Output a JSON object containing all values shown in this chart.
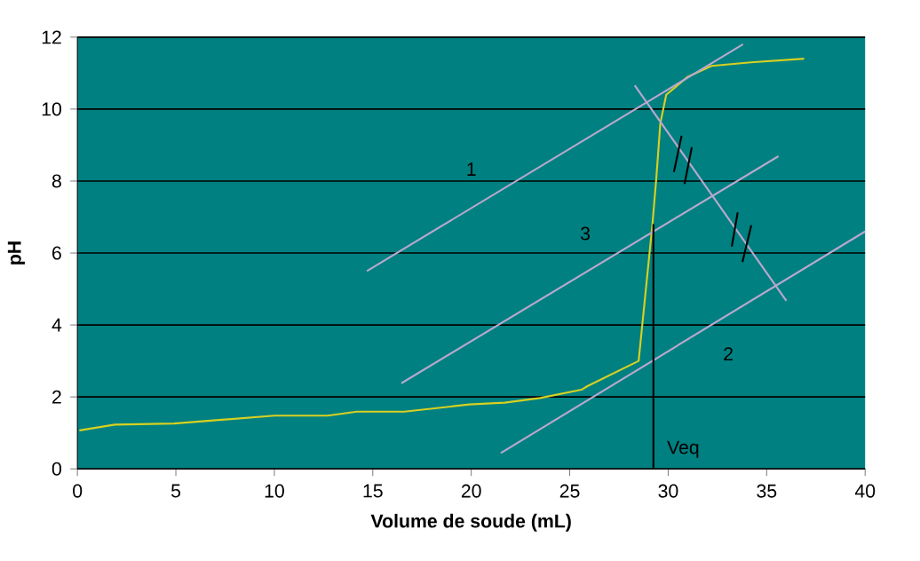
{
  "chart_data": {
    "type": "line",
    "xlabel": "Volume de soude (mL)",
    "ylabel": "pH",
    "xlim": [
      0,
      40
    ],
    "ylim": [
      0,
      12
    ],
    "xticks": [
      0,
      5,
      10,
      15,
      20,
      25,
      30,
      35,
      40
    ],
    "yticks": [
      0,
      2,
      4,
      6,
      8,
      10,
      12
    ],
    "grid": "y",
    "series": [
      {
        "color": "#d8d020",
        "x": [
          0.1,
          1.9,
          4.9,
          10,
          12.7,
          14.2,
          16.6,
          19.9,
          21.7,
          23.5,
          25.6,
          25.9,
          28.5,
          29.2,
          29.4,
          29.6,
          29.9,
          31,
          32.2,
          34.2,
          36.9
        ],
        "values": [
          1.07,
          1.23,
          1.26,
          1.48,
          1.48,
          1.59,
          1.59,
          1.79,
          1.84,
          1.97,
          2.2,
          2.3,
          3.0,
          6.8,
          8.1,
          9.6,
          10.4,
          10.9,
          11.2,
          11.3,
          11.4
        ]
      },
      {
        "name": "1",
        "color": "#b8a8d0",
        "x": [
          14.7,
          33.8
        ],
        "values": [
          5.5,
          11.8
        ]
      },
      {
        "name": "2",
        "color": "#b8a8d0",
        "x": [
          21.5,
          40
        ],
        "values": [
          0.44,
          6.6
        ]
      },
      {
        "name": "3",
        "color": "#b8a8d0",
        "x": [
          16.45,
          35.6
        ],
        "values": [
          2.38,
          8.69
        ]
      },
      {
        "color": "#b8a8d0",
        "x": [
          28.3,
          36.0
        ],
        "values": [
          10.66,
          4.67
        ]
      },
      {
        "name": "Veq",
        "color": "#000000",
        "x": [
          29.25,
          29.25
        ],
        "values": [
          0,
          6.8
        ]
      },
      {
        "color": "#000000",
        "x": [
          30.68,
          30.29
        ],
        "values": [
          9.26,
          8.25
        ]
      },
      {
        "color": "#000000",
        "x": [
          31.2,
          30.83
        ],
        "values": [
          8.94,
          7.92
        ]
      },
      {
        "color": "#000000",
        "x": [
          33.53,
          33.23
        ],
        "values": [
          7.13,
          6.18
        ]
      },
      {
        "color": "#000000",
        "x": [
          34.22,
          33.77
        ],
        "values": [
          6.77,
          5.75
        ]
      }
    ]
  }
}
